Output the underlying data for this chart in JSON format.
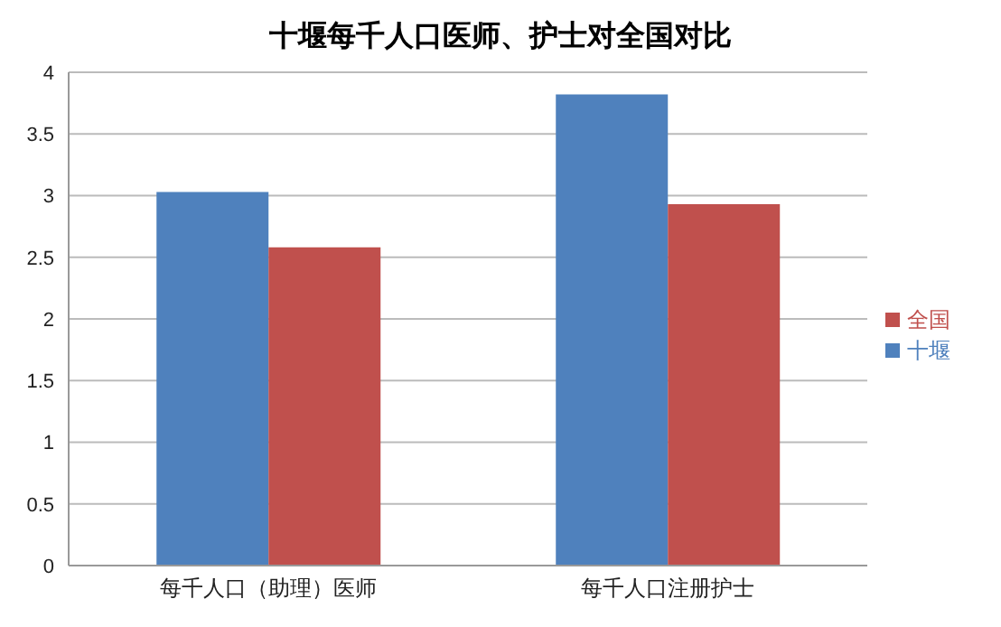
{
  "chart_data": {
    "type": "bar",
    "title": "十堰每千人口医师、护士对全国对比",
    "categories": [
      "每千人口（助理）医师",
      "每千人口注册护士"
    ],
    "series": [
      {
        "name": "十堰",
        "color": "#4f81bd",
        "values": [
          3.03,
          3.82
        ]
      },
      {
        "name": "全国",
        "color": "#c0504d",
        "values": [
          2.58,
          2.93
        ]
      }
    ],
    "ylim": [
      0,
      4
    ],
    "yticks": [
      0,
      0.5,
      1,
      1.5,
      2,
      2.5,
      3,
      3.5,
      4
    ],
    "grid": "y",
    "legend": "right"
  }
}
